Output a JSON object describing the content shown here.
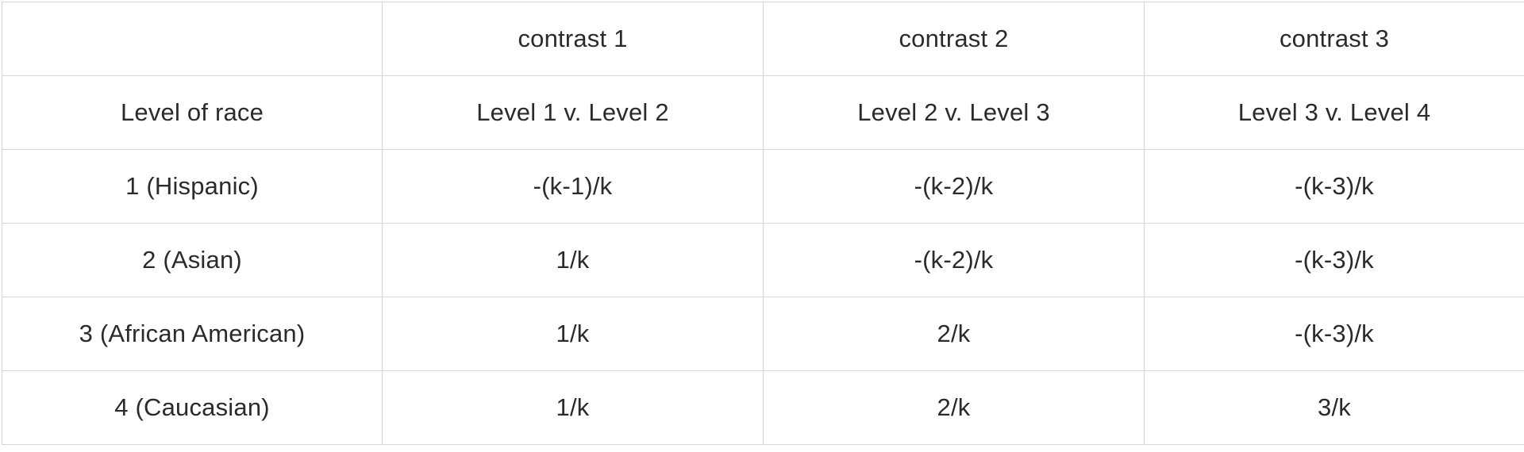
{
  "table": {
    "header_row": [
      "",
      "contrast 1",
      "contrast 2",
      "contrast 3"
    ],
    "rows": [
      [
        "Level of race",
        "Level 1 v. Level 2",
        "Level 2 v. Level 3",
        "Level 3 v. Level 4"
      ],
      [
        "1 (Hispanic)",
        "-(k-1)/k",
        "-(k-2)/k",
        "-(k-3)/k"
      ],
      [
        "2 (Asian)",
        "1/k",
        "-(k-2)/k",
        "-(k-3)/k"
      ],
      [
        "3 (African American)",
        "1/k",
        "2/k",
        "-(k-3)/k"
      ],
      [
        "4 (Caucasian)",
        "1/k",
        "2/k",
        "3/k"
      ]
    ]
  }
}
